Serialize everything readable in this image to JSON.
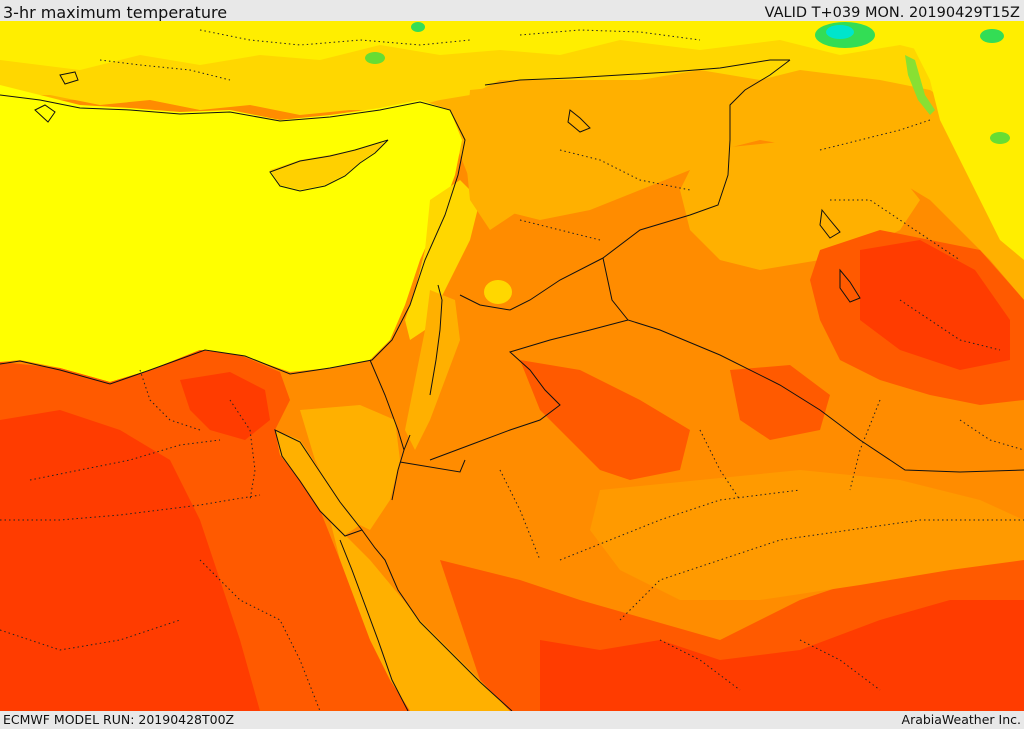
{
  "header": {
    "title": "3-hr maximum temperature",
    "valid": "VALID T+039 MON. 20190429T15Z"
  },
  "footer": {
    "model_run": "ECMWF MODEL RUN: 20190428T00Z",
    "credit": "ArabiaWeather Inc."
  },
  "colors": {
    "sea_yellow": "#ffff00",
    "warm_yellow": "#ffd700",
    "light_orange": "#ffb000",
    "orange": "#ff8c00",
    "deep_orange": "#ff5a00",
    "red_orange": "#ff3c00",
    "green": "#33dd55",
    "cyan": "#00e5cc"
  }
}
